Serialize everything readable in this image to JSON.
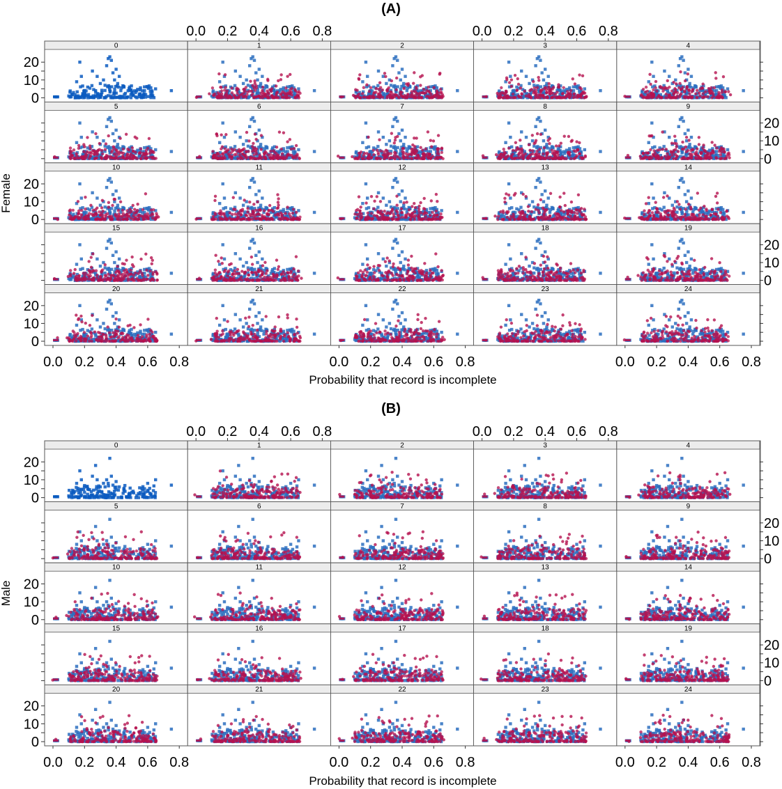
{
  "figure": {
    "colors": {
      "observed": "#2c6fbf",
      "imputed": "#b5124f",
      "observed_solid": "#0a5bbf",
      "strip": "#ececec",
      "frame": "#555555"
    },
    "panels": [
      {
        "title": "(A)",
        "ylabel": "Female",
        "xlabel": "Probability that record is incomplete",
        "x_ticks": [
          "0.0",
          "0.2",
          "0.4",
          "0.6",
          "0.8"
        ],
        "y_ticks": [
          "0",
          "10",
          "20"
        ],
        "strips": [
          "0",
          "1",
          "2",
          "3",
          "4",
          "5",
          "6",
          "7",
          "8",
          "9",
          "10",
          "11",
          "12",
          "13",
          "14",
          "15",
          "16",
          "17",
          "18",
          "19",
          "20",
          "21",
          "22",
          "23",
          "24"
        ]
      },
      {
        "title": "(B)",
        "ylabel": "Male",
        "xlabel": "Probability that record is incomplete",
        "x_ticks": [
          "0.0",
          "0.2",
          "0.4",
          "0.6",
          "0.8"
        ],
        "y_ticks": [
          "0",
          "10",
          "20"
        ],
        "strips": [
          "0",
          "1",
          "2",
          "3",
          "4",
          "5",
          "6",
          "7",
          "8",
          "9",
          "10",
          "11",
          "12",
          "13",
          "14",
          "15",
          "16",
          "17",
          "18",
          "19",
          "20",
          "21",
          "22",
          "23",
          "24"
        ]
      }
    ]
  },
  "chart_data": [
    {
      "type": "scatter",
      "title": "(A)",
      "xlabel": "Probability that record is incomplete",
      "ylabel": "Female",
      "xlim": [
        0.0,
        0.8
      ],
      "ylim": [
        0,
        24
      ],
      "layout": "5 x 5 lattice of panels labelled 0 to 24; panel 0 shows observed data only, panels 1-24 overlay imputed data sets",
      "series": [
        {
          "marker": "square",
          "color": "#2c6fbf",
          "points": [
            [
              0.01,
              0.5
            ],
            [
              0.02,
              0.5
            ],
            [
              0.03,
              0.5
            ],
            [
              0.1,
              1
            ],
            [
              0.12,
              2
            ],
            [
              0.15,
              9
            ],
            [
              0.17,
              20
            ],
            [
              0.18,
              12
            ],
            [
              0.2,
              3
            ],
            [
              0.22,
              6
            ],
            [
              0.25,
              15
            ],
            [
              0.27,
              4
            ],
            [
              0.28,
              12
            ],
            [
              0.3,
              8
            ],
            [
              0.31,
              3
            ],
            [
              0.32,
              10
            ],
            [
              0.33,
              7
            ],
            [
              0.34,
              18
            ],
            [
              0.35,
              22
            ],
            [
              0.36,
              23
            ],
            [
              0.37,
              21
            ],
            [
              0.38,
              14
            ],
            [
              0.39,
              10
            ],
            [
              0.4,
              16
            ],
            [
              0.41,
              8
            ],
            [
              0.42,
              12
            ],
            [
              0.43,
              4
            ],
            [
              0.45,
              6
            ],
            [
              0.5,
              3
            ],
            [
              0.55,
              2
            ],
            [
              0.58,
              4
            ],
            [
              0.6,
              6
            ],
            [
              0.62,
              2
            ],
            [
              0.65,
              5
            ],
            [
              0.75,
              4
            ]
          ]
        },
        {
          "marker": "circle",
          "color": "#b5124f",
          "points": [
            [
              0.01,
              1
            ],
            [
              0.1,
              2
            ],
            [
              0.15,
              3
            ],
            [
              0.2,
              1
            ],
            [
              0.25,
              5
            ],
            [
              0.3,
              4
            ],
            [
              0.35,
              9
            ],
            [
              0.4,
              6
            ],
            [
              0.45,
              3
            ],
            [
              0.5,
              7
            ],
            [
              0.55,
              3
            ],
            [
              0.6,
              2
            ],
            [
              0.65,
              1
            ]
          ]
        }
      ]
    },
    {
      "type": "scatter",
      "title": "(B)",
      "xlabel": "Probability that record is incomplete",
      "ylabel": "Male",
      "xlim": [
        0.0,
        0.8
      ],
      "ylim": [
        0,
        24
      ],
      "layout": "5 x 5 lattice of panels labelled 0 to 24; panel 0 shows observed data only, panels 1-24 overlay imputed data sets",
      "series": [
        {
          "marker": "square",
          "color": "#2c6fbf",
          "points": [
            [
              0.01,
              0.5
            ],
            [
              0.02,
              0.5
            ],
            [
              0.03,
              0.5
            ],
            [
              0.1,
              1
            ],
            [
              0.12,
              2
            ],
            [
              0.15,
              8
            ],
            [
              0.17,
              15
            ],
            [
              0.18,
              10
            ],
            [
              0.2,
              3
            ],
            [
              0.22,
              5
            ],
            [
              0.25,
              12
            ],
            [
              0.27,
              18
            ],
            [
              0.28,
              10
            ],
            [
              0.3,
              6
            ],
            [
              0.31,
              3
            ],
            [
              0.32,
              8
            ],
            [
              0.33,
              6
            ],
            [
              0.34,
              10
            ],
            [
              0.35,
              8
            ],
            [
              0.36,
              22
            ],
            [
              0.37,
              12
            ],
            [
              0.38,
              7
            ],
            [
              0.4,
              9
            ],
            [
              0.42,
              6
            ],
            [
              0.45,
              4
            ],
            [
              0.5,
              3
            ],
            [
              0.55,
              2
            ],
            [
              0.58,
              5
            ],
            [
              0.6,
              8
            ],
            [
              0.62,
              2
            ],
            [
              0.65,
              10
            ],
            [
              0.75,
              7
            ]
          ]
        },
        {
          "marker": "circle",
          "color": "#b5124f",
          "points": [
            [
              0.01,
              1
            ],
            [
              0.1,
              2
            ],
            [
              0.15,
              3
            ],
            [
              0.2,
              1
            ],
            [
              0.25,
              4
            ],
            [
              0.3,
              5
            ],
            [
              0.35,
              8
            ],
            [
              0.4,
              5
            ],
            [
              0.45,
              3
            ],
            [
              0.5,
              4
            ],
            [
              0.55,
              2
            ],
            [
              0.6,
              2
            ],
            [
              0.65,
              1
            ]
          ]
        }
      ]
    }
  ]
}
